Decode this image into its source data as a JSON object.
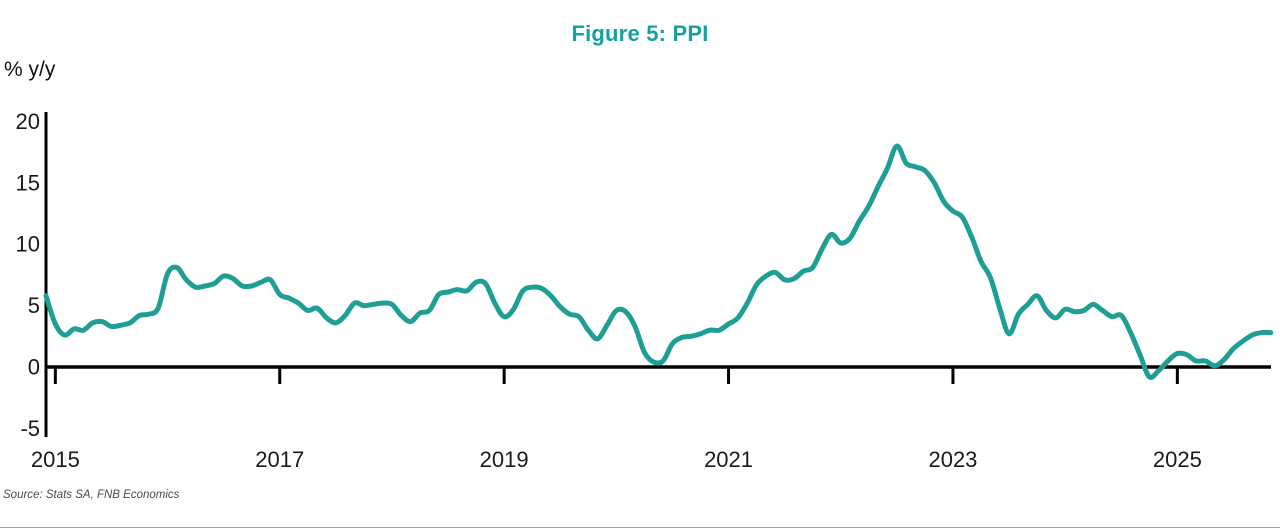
{
  "page": {
    "title": "Figure 5: PPI",
    "ylabel": "% y/y",
    "source": "Source: Stats SA, FNB Economics"
  },
  "colors": {
    "title_accent": "#16a0a0",
    "line": "#1f9e96",
    "axis": "#000000",
    "divider": "#a3a3a3"
  },
  "chart_data": {
    "type": "line",
    "title": "Figure 5: PPI",
    "xlabel": "",
    "ylabel": "% y/y",
    "series_name": "PPI, % y/y",
    "x_start": "2014-12",
    "x_interval": "monthly",
    "x_tick_years": [
      2015,
      2017,
      2019,
      2021,
      2023,
      2025
    ],
    "y_ticks": [
      20,
      15,
      10,
      5,
      0,
      -5
    ],
    "ylim": [
      -5,
      20
    ],
    "grid": false,
    "legend": false,
    "values": [
      5.8,
      3.5,
      2.6,
      3.1,
      3.0,
      3.6,
      3.7,
      3.3,
      3.4,
      3.6,
      4.2,
      4.3,
      4.8,
      7.6,
      8.1,
      7.1,
      6.5,
      6.6,
      6.8,
      7.4,
      7.2,
      6.6,
      6.6,
      6.9,
      7.1,
      5.9,
      5.6,
      5.2,
      4.6,
      4.8,
      4.0,
      3.6,
      4.2,
      5.2,
      5.0,
      5.1,
      5.2,
      5.1,
      4.2,
      3.7,
      4.4,
      4.6,
      5.9,
      6.1,
      6.3,
      6.2,
      6.9,
      6.8,
      5.2,
      4.1,
      4.7,
      6.2,
      6.5,
      6.4,
      5.8,
      4.9,
      4.3,
      4.1,
      3.0,
      2.3,
      3.4,
      4.6,
      4.5,
      3.3,
      1.2,
      0.4,
      0.5,
      1.9,
      2.4,
      2.5,
      2.7,
      3.0,
      3.0,
      3.5,
      4.0,
      5.2,
      6.7,
      7.4,
      7.7,
      7.1,
      7.2,
      7.8,
      8.1,
      9.6,
      10.8,
      10.1,
      10.5,
      11.9,
      13.1,
      14.7,
      16.2,
      18.0,
      16.6,
      16.3,
      16.0,
      15.0,
      13.5,
      12.7,
      12.2,
      10.6,
      8.6,
      7.3,
      4.8,
      2.7,
      4.3,
      5.1,
      5.8,
      4.6,
      4.0,
      4.7,
      4.5,
      4.6,
      5.1,
      4.6,
      4.1,
      4.2,
      2.8,
      1.0,
      -0.8,
      -0.3,
      0.5,
      1.1,
      1.0,
      0.5,
      0.5,
      0.1,
      0.6,
      1.5,
      2.1,
      2.6,
      2.8,
      2.8
    ]
  }
}
